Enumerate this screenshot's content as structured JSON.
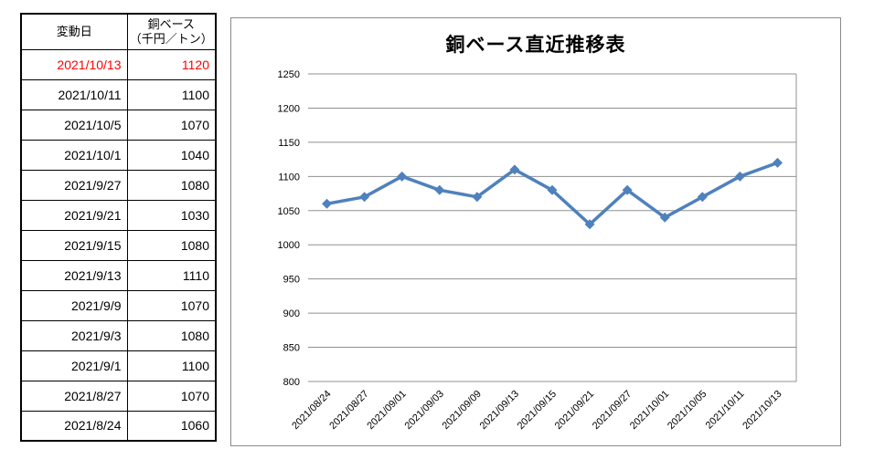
{
  "table": {
    "headers": {
      "date": "変動日",
      "price_line1": "銅ベース",
      "price_line2": "（千円／トン）"
    },
    "highlight_color": "#ff0000",
    "rows": [
      {
        "date": "2021/10/13",
        "price": "1120",
        "highlight": true
      },
      {
        "date": "2021/10/11",
        "price": "1100",
        "highlight": false
      },
      {
        "date": "2021/10/5",
        "price": "1070",
        "highlight": false
      },
      {
        "date": "2021/10/1",
        "price": "1040",
        "highlight": false
      },
      {
        "date": "2021/9/27",
        "price": "1080",
        "highlight": false
      },
      {
        "date": "2021/9/21",
        "price": "1030",
        "highlight": false
      },
      {
        "date": "2021/9/15",
        "price": "1080",
        "highlight": false
      },
      {
        "date": "2021/9/13",
        "price": "1110",
        "highlight": false
      },
      {
        "date": "2021/9/9",
        "price": "1070",
        "highlight": false
      },
      {
        "date": "2021/9/3",
        "price": "1080",
        "highlight": false
      },
      {
        "date": "2021/9/1",
        "price": "1100",
        "highlight": false
      },
      {
        "date": "2021/8/27",
        "price": "1070",
        "highlight": false
      },
      {
        "date": "2021/8/24",
        "price": "1060",
        "highlight": false
      }
    ]
  },
  "chart_data": {
    "type": "line",
    "title": "銅ベース直近推移表",
    "x": [
      "2021/08/24",
      "2021/08/27",
      "2021/09/01",
      "2021/09/03",
      "2021/09/09",
      "2021/09/13",
      "2021/09/15",
      "2021/09/21",
      "2021/09/27",
      "2021/10/01",
      "2021/10/05",
      "2021/10/11",
      "2021/10/13"
    ],
    "values": [
      1060,
      1070,
      1100,
      1080,
      1070,
      1110,
      1080,
      1030,
      1080,
      1040,
      1070,
      1100,
      1120
    ],
    "xlabel": "",
    "ylabel": "",
    "ylim": [
      800,
      1250
    ],
    "ytick_step": 50,
    "grid": true,
    "legend": "none",
    "marker": "diamond",
    "line_color": "#4f81bd",
    "gridline_color": "#909090",
    "axis_label_color": "#000000"
  }
}
